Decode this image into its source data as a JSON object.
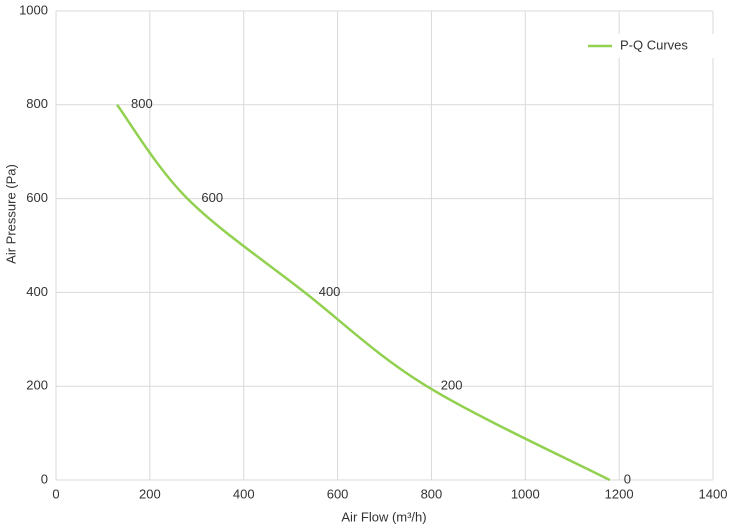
{
  "chart_data": {
    "type": "line",
    "x_label": "Air Flow  (m³/h)",
    "y_label": "Air Pressure  (Pa)",
    "x": [
      130,
      280,
      530,
      790,
      1180
    ],
    "series": [
      {
        "name": "P-Q Curves",
        "color": "#92d050",
        "values": [
          800,
          600,
          400,
          200,
          0
        ]
      }
    ],
    "xlim": [
      0,
      1400
    ],
    "xticks": [
      0,
      200,
      400,
      600,
      800,
      1000,
      1200,
      1400
    ],
    "ylim": [
      0,
      1000
    ],
    "yticks": [
      0,
      200,
      400,
      600,
      800,
      1000
    ],
    "grid": true,
    "legend": "top-right",
    "data_labels": true
  }
}
